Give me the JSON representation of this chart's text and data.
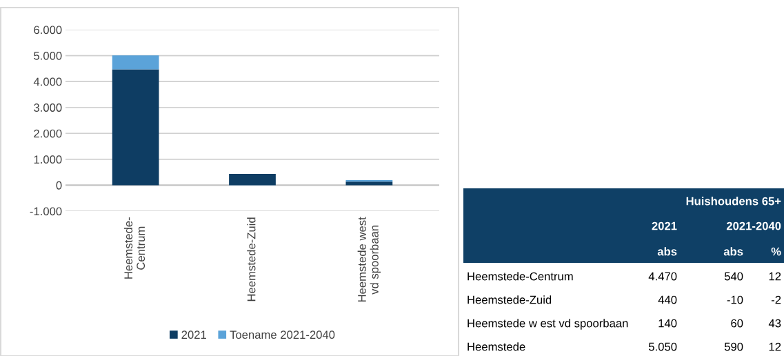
{
  "chart_data": [
    {
      "type": "bar",
      "stacked": true,
      "categories": [
        "Heemstede-\nCentrum",
        "Heemstede-Zuid",
        "Heemstede west\nvd spoorbaan"
      ],
      "series": [
        {
          "name": "2021",
          "color": "#0e3d63",
          "values": [
            4470,
            440,
            140
          ]
        },
        {
          "name": "Toename 2021-2040",
          "color": "#5ba3d9",
          "values": [
            540,
            -10,
            60
          ]
        }
      ],
      "ylim": [
        -1000,
        6000
      ],
      "yticks": [
        {
          "value": -1000,
          "label": "-1.000"
        },
        0,
        {
          "value": 1000,
          "label": "1.000"
        },
        {
          "value": 2000,
          "label": "2.000"
        },
        {
          "value": 3000,
          "label": "3.000"
        },
        {
          "value": 4000,
          "label": "4.000"
        },
        {
          "value": 5000,
          "label": "5.000"
        },
        {
          "value": 6000,
          "label": "6.000"
        }
      ],
      "grid": "y",
      "legend": "bottom"
    },
    {
      "type": "other",
      "title": "Huishoudens 65+",
      "annotations": [
        "2021",
        "2021-2040"
      ],
      "categories": [
        "abs",
        "abs",
        "%"
      ],
      "y_categories": [
        "Heemstede-Centrum",
        "Heemstede-Zuid",
        "Heemstede w est vd spoorbaan",
        "Heemstede"
      ],
      "cell_labels": [
        [
          "4.470",
          "540",
          "12"
        ],
        [
          "440",
          "-10",
          "-2"
        ],
        [
          "140",
          "60",
          "43"
        ],
        [
          "5.050",
          "590",
          "12"
        ]
      ]
    }
  ]
}
